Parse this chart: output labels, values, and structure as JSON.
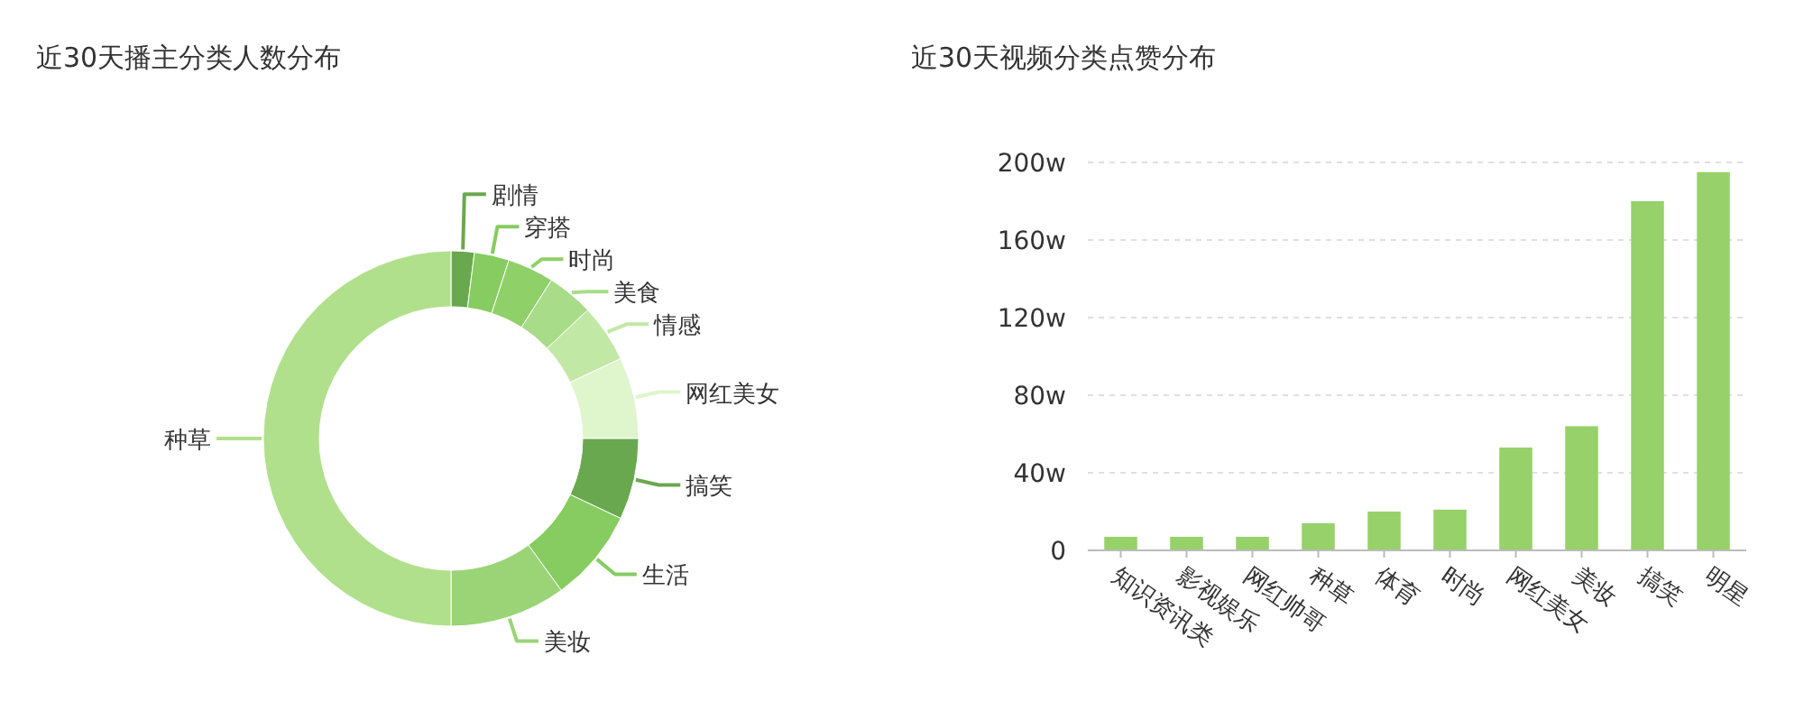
{
  "chart_data": [
    {
      "type": "donut",
      "title": "近30天播主分类人数分布",
      "categories": [
        "剧情",
        "穿搭",
        "时尚",
        "美食",
        "情感",
        "网红美女",
        "搞笑",
        "生活",
        "美妆",
        "种草"
      ],
      "values": [
        2,
        3,
        4,
        4,
        5,
        7,
        7,
        8,
        10,
        50
      ],
      "colors": [
        "#6aa84f",
        "#86cc60",
        "#90d068",
        "#a9dc88",
        "#c2e8a6",
        "#dff5cc",
        "#6aa84f",
        "#86cc60",
        "#9ad476",
        "#b0e08c"
      ]
    },
    {
      "type": "bar",
      "title": "近30天视频分类点赞分布",
      "categories": [
        "知识资讯类",
        "影视娱乐",
        "网红帅哥",
        "种草",
        "体育",
        "时尚",
        "网红美女",
        "美妆",
        "搞笑",
        "明星"
      ],
      "values": [
        7,
        7,
        7,
        14,
        20,
        21,
        53,
        64,
        180,
        195
      ],
      "color": "#96d16a",
      "ylim": [
        0,
        200
      ],
      "yticks": [
        0,
        {
          "value": 40,
          "label": "40w"
        },
        {
          "value": 80,
          "label": "80w"
        },
        {
          "value": 120,
          "label": "120w"
        },
        {
          "value": 160,
          "label": "160w"
        },
        {
          "value": 200,
          "label": "200w"
        }
      ],
      "grid": "y"
    }
  ]
}
